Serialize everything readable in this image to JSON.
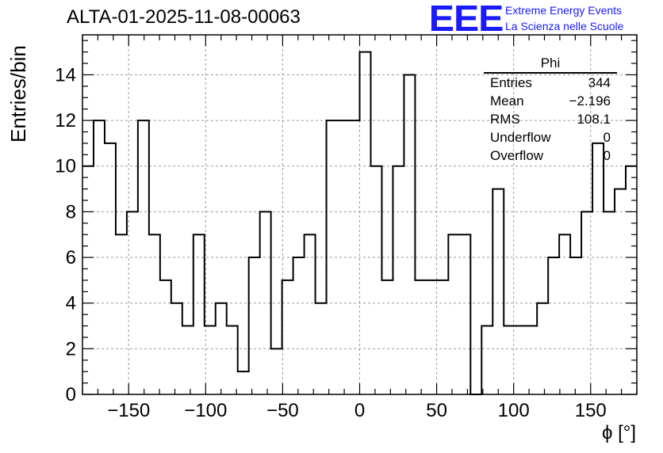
{
  "title": "ALTA-01-2025-11-08-00063",
  "logo": {
    "mark": "EEE",
    "line1": "Extreme Energy Events",
    "line2": "La Scienza nelle Scuole",
    "color": "#1a1aff"
  },
  "stats": {
    "title": "Phi",
    "rows": [
      {
        "label": "Entries",
        "value": "344"
      },
      {
        "label": "Mean",
        "value": "−2.196"
      },
      {
        "label": "RMS",
        "value": "108.1"
      },
      {
        "label": "Underflow",
        "value": "0"
      },
      {
        "label": "Overflow",
        "value": "0"
      }
    ]
  },
  "chart_data": {
    "type": "histogram",
    "title": "ALTA-01-2025-11-08-00063",
    "xlabel": "ϕ [°]",
    "ylabel": "Entries/bin",
    "xlim": [
      -180,
      180
    ],
    "ylim": [
      0,
      15.75
    ],
    "grid": true,
    "bin_width": 7.2,
    "x_ticks": [
      -150,
      -100,
      -50,
      0,
      50,
      100,
      150
    ],
    "x_tick_labels": [
      "−150",
      "−100",
      "−50",
      "0",
      "50",
      "100",
      "150"
    ],
    "y_ticks": [
      0,
      2,
      4,
      6,
      8,
      10,
      12,
      14
    ],
    "y_tick_labels": [
      "0",
      "2",
      "4",
      "6",
      "8",
      "10",
      "12",
      "14"
    ],
    "values": [
      10,
      12,
      11,
      7,
      8,
      12,
      7,
      5,
      4,
      3,
      7,
      3,
      4,
      3,
      1,
      6,
      8,
      2,
      5,
      6,
      7,
      4,
      12,
      12,
      12,
      15,
      10,
      5,
      10,
      14,
      5,
      5,
      5,
      7,
      7,
      0,
      3,
      9,
      3,
      3,
      3,
      4,
      6,
      7,
      6,
      8,
      11,
      8,
      9,
      10
    ]
  }
}
